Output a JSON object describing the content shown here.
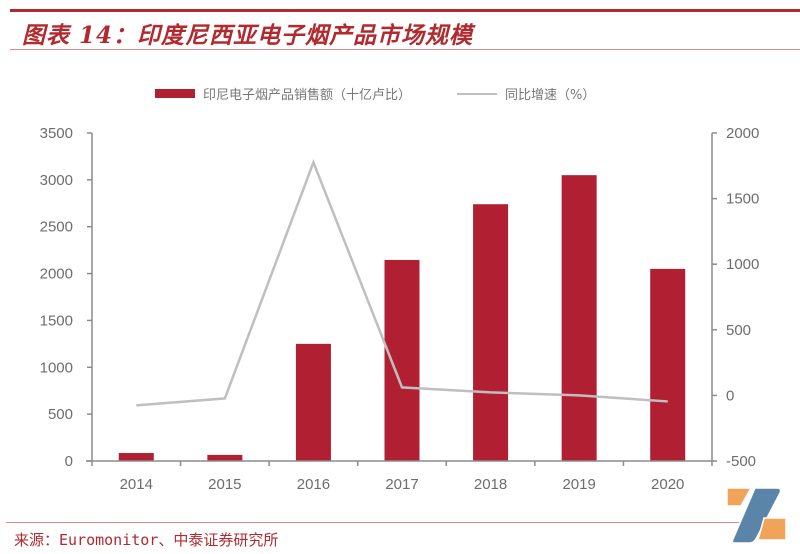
{
  "header": {
    "title": "图表 14：印度尼西亚电子烟产品市场规模"
  },
  "legend": {
    "bar_label": "印尼电子烟产品销售额（十亿卢比）",
    "line_label": "同比增速（%）"
  },
  "footer": {
    "source": "来源：Euromonitor、中泰证券研究所"
  },
  "colors": {
    "bar": "#b11f33",
    "line": "#bfbfbf",
    "brand_red": "#b22a2e",
    "logo_blue": "#5b85a8",
    "logo_orange": "#f2a35a"
  },
  "chart_data": {
    "type": "bar+line",
    "title": "印度尼西亚电子烟产品市场规模",
    "categories": [
      "2014",
      "2015",
      "2016",
      "2017",
      "2018",
      "2019",
      "2020"
    ],
    "series": [
      {
        "name": "印尼电子烟产品销售额（十亿卢比）",
        "type": "bar",
        "axis": "left",
        "values": [
          85,
          65,
          1250,
          2145,
          2740,
          3050,
          2050
        ]
      },
      {
        "name": "同比增速（%）",
        "type": "line",
        "axis": "right",
        "values": [
          -76,
          -23,
          1776,
          61,
          23,
          0,
          -46
        ]
      }
    ],
    "left_axis": {
      "ylim": [
        0,
        3500
      ],
      "ticks": [
        "0",
        "500",
        "1000",
        "1500",
        "2000",
        "2500",
        "3000",
        "3500"
      ]
    },
    "right_axis": {
      "ylim": [
        -500,
        2000
      ],
      "ticks": [
        "-500",
        "0",
        "500",
        "1000",
        "1500",
        "2000"
      ]
    },
    "xlabel": "",
    "ylabel": "",
    "grid": false,
    "legend_position": "top"
  }
}
